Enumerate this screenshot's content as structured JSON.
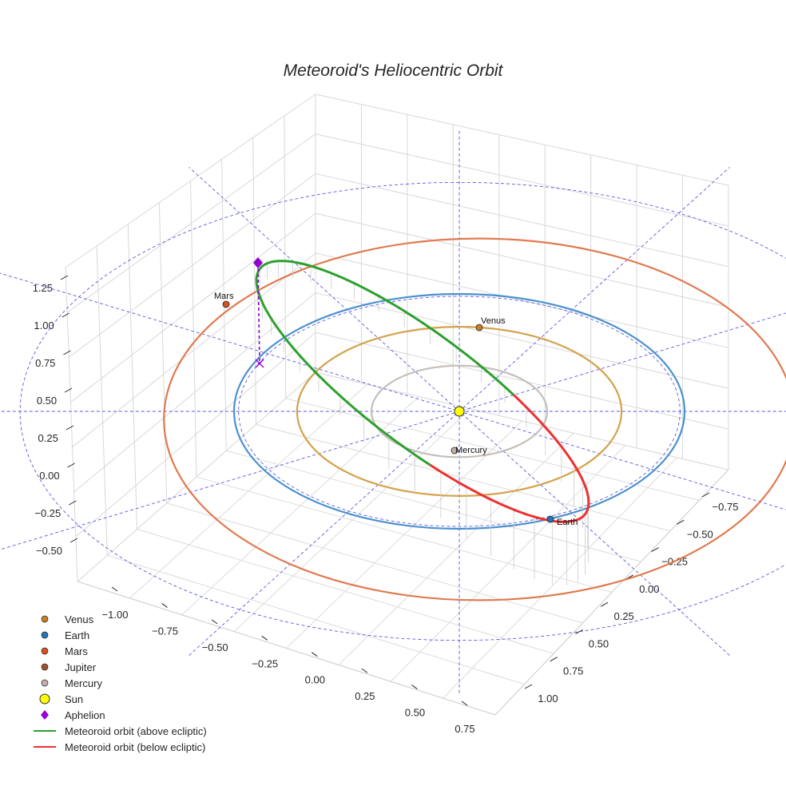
{
  "chart_data": {
    "type": "3d-orbit-plot",
    "title": "Meteoroid's Heliocentric Orbit",
    "axes": {
      "z_ticks": [
        "1.25",
        "1.00",
        "0.75",
        "0.50",
        "0.25",
        "0.00",
        "−0.25",
        "−0.50"
      ],
      "x_ticks": [
        "−1.00",
        "−0.75",
        "−0.50",
        "−0.25",
        "0.00",
        "0.25",
        "0.50",
        "0.75"
      ],
      "y_ticks": [
        "−0.75",
        "−0.50",
        "−0.25",
        "0.00",
        "0.25",
        "0.50",
        "0.75",
        "1.00"
      ]
    },
    "planets": [
      {
        "name": "Venus",
        "label": "Venus",
        "orbit_radius_au": 0.72,
        "color": "#c87f22",
        "orbit_color": "#d4a24c"
      },
      {
        "name": "Earth",
        "label": "Earth",
        "orbit_radius_au": 1.0,
        "color": "#1f77b4",
        "orbit_color": "#4a90d0"
      },
      {
        "name": "Mars",
        "label": "Mars",
        "orbit_radius_au": 1.52,
        "color": "#d9531e",
        "orbit_color": "#e07a50"
      },
      {
        "name": "Mercury",
        "label": "Mercury",
        "orbit_radius_au": 0.39,
        "color": "#c0b0a8",
        "orbit_color": "#c4beb8"
      }
    ],
    "meteoroid_orbit": {
      "above_ecliptic_color": "#2ca02c",
      "below_ecliptic_color": "#ee3030",
      "aphelion_color": "#9400d3"
    },
    "legend": [
      {
        "label": "Venus",
        "marker": "circle",
        "color": "#c87f22"
      },
      {
        "label": "Earth",
        "marker": "circle",
        "color": "#1f77b4"
      },
      {
        "label": "Mars",
        "marker": "circle",
        "color": "#d9531e"
      },
      {
        "label": "Jupiter",
        "marker": "circle",
        "color": "#a0522d"
      },
      {
        "label": "Mercury",
        "marker": "circle",
        "color": "#c0b0a8"
      },
      {
        "label": "Sun",
        "marker": "big-circle",
        "color": "#ffff00"
      },
      {
        "label": "Aphelion",
        "marker": "diamond",
        "color": "#9400d3"
      },
      {
        "label": "Meteoroid orbit (above ecliptic)",
        "marker": "line",
        "color": "#2ca02c"
      },
      {
        "label": "Meteoroid orbit (below ecliptic)",
        "marker": "line",
        "color": "#ee3030"
      }
    ]
  }
}
